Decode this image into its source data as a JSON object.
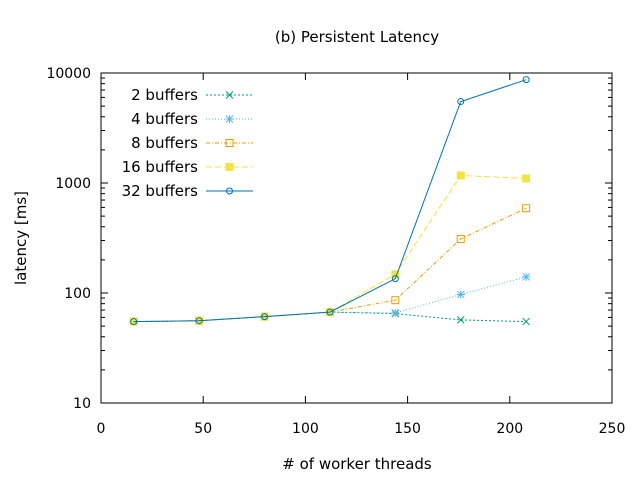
{
  "chart_data": {
    "type": "line",
    "title": "(b) Persistent Latency",
    "xlabel": "# of worker threads",
    "ylabel": "latency [ms]",
    "xlim": [
      0,
      250
    ],
    "ylim": [
      10,
      10000
    ],
    "y_scale": "log",
    "x_ticks": [
      0,
      50,
      100,
      150,
      200,
      250
    ],
    "x_tick_labels": [
      "0",
      "50",
      "100",
      "150",
      "200",
      "250"
    ],
    "y_ticks": [
      10,
      100,
      1000,
      10000
    ],
    "y_tick_labels": [
      "10",
      "100",
      "1000",
      "10000"
    ],
    "grid": false,
    "legend_position": "top-left",
    "x": [
      16,
      48,
      80,
      112,
      144,
      176,
      208
    ],
    "series": [
      {
        "name": "2 buffers",
        "color": "#009e73",
        "marker": "x",
        "dash": "dotted",
        "values": [
          55,
          56,
          61,
          67,
          65,
          57,
          55
        ]
      },
      {
        "name": "4 buffers",
        "color": "#56b4e9",
        "marker": "star",
        "dash": "fine-dot",
        "values": [
          55,
          56,
          61,
          67,
          66,
          97,
          140
        ]
      },
      {
        "name": "8 buffers",
        "color": "#e69f00",
        "marker": "open-square",
        "dash": "dash-dot",
        "values": [
          55,
          56,
          61,
          67,
          86,
          310,
          590
        ]
      },
      {
        "name": "16 buffers",
        "color": "#f0e442",
        "marker": "filled-square",
        "dash": "dashed",
        "values": [
          55,
          56,
          61,
          67,
          148,
          1170,
          1100
        ]
      },
      {
        "name": "32 buffers",
        "color": "#0072b2",
        "marker": "open-circle",
        "dash": "solid",
        "values": [
          55,
          56,
          61,
          67,
          135,
          5500,
          8700
        ]
      }
    ]
  }
}
